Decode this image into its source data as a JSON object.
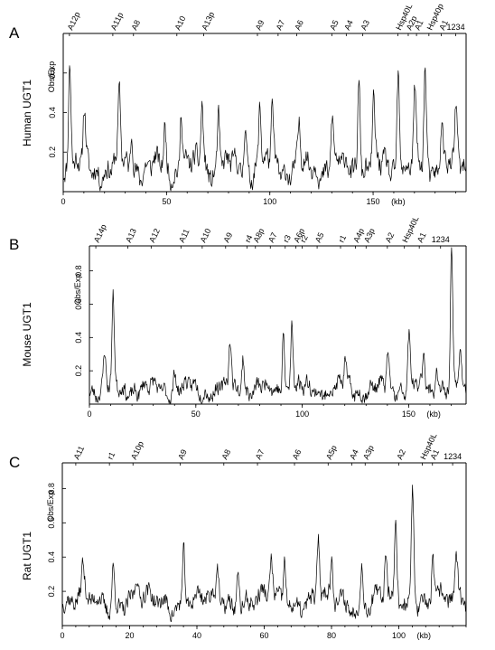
{
  "chart_data": [
    {
      "type": "line",
      "panel_letter": "A",
      "title": "",
      "species_label": "Human UGT1",
      "ylabel": "Obs/Exp",
      "xlabel": "",
      "x_unit_label": "(kb)",
      "xlim": [
        0,
        195
      ],
      "ylim": [
        0,
        0.8
      ],
      "x_ticks": [
        0,
        50,
        100,
        150
      ],
      "y_ticks": [
        0.2,
        0.4,
        0.6
      ],
      "y_tick_labels": [
        "0.2",
        "0.4",
        "0.6"
      ],
      "grid": false,
      "gene_labels": [
        {
          "label": "A12p",
          "x": 3
        },
        {
          "label": "A11p",
          "x": 24
        },
        {
          "label": "A8",
          "x": 34
        },
        {
          "label": "A10",
          "x": 55
        },
        {
          "label": "A13p",
          "x": 68
        },
        {
          "label": "A9",
          "x": 94
        },
        {
          "label": "A7",
          "x": 104
        },
        {
          "label": "A6",
          "x": 113
        },
        {
          "label": "A5",
          "x": 130
        },
        {
          "label": "A4",
          "x": 137
        },
        {
          "label": "A3",
          "x": 145
        },
        {
          "label": "Hsp40L",
          "x": 162
        },
        {
          "label": "A2p",
          "x": 167
        },
        {
          "label": "A1",
          "x": 171
        },
        {
          "label": "Hsp40p",
          "x": 177
        },
        {
          "label": "A1",
          "x": 183
        },
        {
          "label": "1234",
          "x": 190
        }
      ],
      "series": [
        {
          "base": 0.12,
          "noise": 0.12,
          "seed": 11,
          "peaks": [
            {
              "x": 3,
              "y": 0.78
            },
            {
              "x": 10,
              "y": 0.42
            },
            {
              "x": 27,
              "y": 0.54
            },
            {
              "x": 33,
              "y": 0.36
            },
            {
              "x": 49,
              "y": 0.32
            },
            {
              "x": 57,
              "y": 0.48
            },
            {
              "x": 67,
              "y": 0.5
            },
            {
              "x": 75,
              "y": 0.44
            },
            {
              "x": 88,
              "y": 0.4
            },
            {
              "x": 95,
              "y": 0.48
            },
            {
              "x": 101,
              "y": 0.44
            },
            {
              "x": 114,
              "y": 0.36
            },
            {
              "x": 130,
              "y": 0.44
            },
            {
              "x": 143,
              "y": 0.66
            },
            {
              "x": 150,
              "y": 0.48
            },
            {
              "x": 162,
              "y": 0.7
            },
            {
              "x": 170,
              "y": 0.52
            },
            {
              "x": 175,
              "y": 0.66
            },
            {
              "x": 183,
              "y": 0.44
            },
            {
              "x": 190,
              "y": 0.42
            }
          ]
        }
      ]
    },
    {
      "type": "line",
      "panel_letter": "B",
      "title": "",
      "species_label": "Mouse UGT1",
      "ylabel": "Obs/Exp",
      "xlabel": "",
      "x_unit_label": "(kb)",
      "xlim": [
        0,
        177
      ],
      "ylim": [
        0,
        0.95
      ],
      "x_ticks": [
        0,
        50,
        100,
        150
      ],
      "y_ticks": [
        0.2,
        0.4,
        0.6,
        0.8
      ],
      "y_tick_labels": [
        "0.2",
        "0.4",
        "0.6",
        "0.8"
      ],
      "grid": false,
      "gene_labels": [
        {
          "label": "A14p",
          "x": 3
        },
        {
          "label": "A13",
          "x": 18
        },
        {
          "label": "A12",
          "x": 29
        },
        {
          "label": "A11",
          "x": 43
        },
        {
          "label": "A10",
          "x": 53
        },
        {
          "label": "A9",
          "x": 64
        },
        {
          "label": "r4",
          "x": 74
        },
        {
          "label": "A8p",
          "x": 78
        },
        {
          "label": "A7",
          "x": 85
        },
        {
          "label": "r3",
          "x": 92
        },
        {
          "label": "A6p",
          "x": 97
        },
        {
          "label": "r2",
          "x": 100
        },
        {
          "label": "A5",
          "x": 107
        },
        {
          "label": "r1",
          "x": 118
        },
        {
          "label": "A4p",
          "x": 125
        },
        {
          "label": "A3p",
          "x": 130
        },
        {
          "label": "A2",
          "x": 140
        },
        {
          "label": "Hsp40L",
          "x": 148
        },
        {
          "label": "A1",
          "x": 155
        },
        {
          "label": "1234",
          "x": 165
        }
      ],
      "series": [
        {
          "base": 0.09,
          "noise": 0.1,
          "seed": 23,
          "peaks": [
            {
              "x": 7,
              "y": 0.34
            },
            {
              "x": 11,
              "y": 0.66
            },
            {
              "x": 40,
              "y": 0.22
            },
            {
              "x": 66,
              "y": 0.42
            },
            {
              "x": 72,
              "y": 0.36
            },
            {
              "x": 91,
              "y": 0.52
            },
            {
              "x": 95,
              "y": 0.56
            },
            {
              "x": 120,
              "y": 0.28
            },
            {
              "x": 140,
              "y": 0.34
            },
            {
              "x": 150,
              "y": 0.48
            },
            {
              "x": 157,
              "y": 0.34
            },
            {
              "x": 163,
              "y": 0.3
            },
            {
              "x": 170,
              "y": 0.96
            },
            {
              "x": 174,
              "y": 0.36
            }
          ]
        }
      ]
    },
    {
      "type": "line",
      "panel_letter": "C",
      "title": "",
      "species_label": "Rat UGT1",
      "ylabel": "Obs/Exp",
      "xlabel": "",
      "x_unit_label": "(kb)",
      "xlim": [
        0,
        120
      ],
      "ylim": [
        0,
        0.95
      ],
      "x_ticks": [
        0,
        20,
        40,
        60,
        80,
        100
      ],
      "y_ticks": [
        0.2,
        0.4,
        0.6,
        0.8
      ],
      "y_tick_labels": [
        "0.2",
        "0.4",
        "0.6",
        "0.8"
      ],
      "grid": false,
      "gene_labels": [
        {
          "label": "A11",
          "x": 4
        },
        {
          "label": "r1",
          "x": 14
        },
        {
          "label": "A10p",
          "x": 21
        },
        {
          "label": "A9",
          "x": 35
        },
        {
          "label": "A8",
          "x": 48
        },
        {
          "label": "A7",
          "x": 58
        },
        {
          "label": "A6",
          "x": 69
        },
        {
          "label": "A5p",
          "x": 79
        },
        {
          "label": "A4",
          "x": 86
        },
        {
          "label": "A3p",
          "x": 90
        },
        {
          "label": "A2",
          "x": 100
        },
        {
          "label": "Hsp40L",
          "x": 107
        },
        {
          "label": "A1",
          "x": 110
        },
        {
          "label": "1234",
          "x": 116
        }
      ],
      "series": [
        {
          "base": 0.14,
          "noise": 0.12,
          "seed": 37,
          "peaks": [
            {
              "x": 6,
              "y": 0.32
            },
            {
              "x": 15,
              "y": 0.4
            },
            {
              "x": 22,
              "y": 0.3
            },
            {
              "x": 36,
              "y": 0.48
            },
            {
              "x": 46,
              "y": 0.36
            },
            {
              "x": 52,
              "y": 0.4
            },
            {
              "x": 62,
              "y": 0.42
            },
            {
              "x": 66,
              "y": 0.46
            },
            {
              "x": 76,
              "y": 0.56
            },
            {
              "x": 80,
              "y": 0.38
            },
            {
              "x": 89,
              "y": 0.4
            },
            {
              "x": 96,
              "y": 0.46
            },
            {
              "x": 99,
              "y": 0.6
            },
            {
              "x": 104,
              "y": 0.96
            },
            {
              "x": 110,
              "y": 0.44
            },
            {
              "x": 117,
              "y": 0.4
            }
          ]
        }
      ]
    }
  ]
}
